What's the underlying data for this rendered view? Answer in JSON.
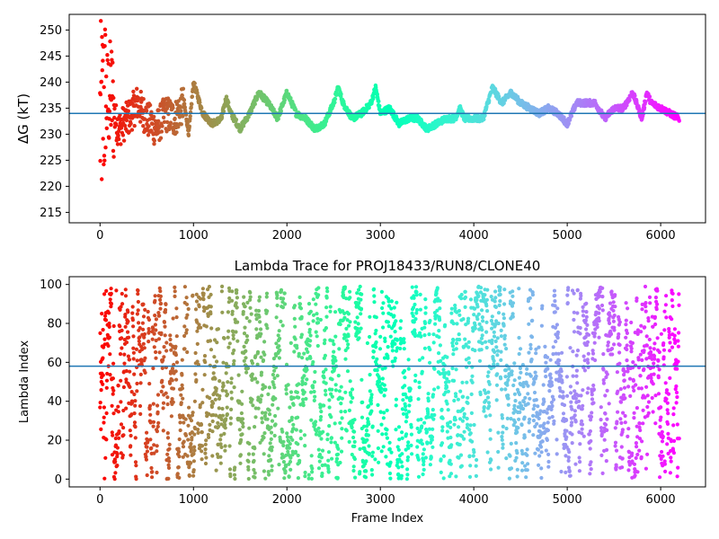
{
  "colors": {
    "series_colormap": "rainbow",
    "reference_line": "#1f77b4",
    "axes": "#000000",
    "background": "#ffffff"
  },
  "chart_data": [
    {
      "type": "scatter",
      "panel": "top",
      "title": "",
      "xlabel": "",
      "ylabel": "ΔG (kT)",
      "xlim": [
        -330,
        6480
      ],
      "ylim": [
        213,
        253
      ],
      "xticks": [
        0,
        1000,
        2000,
        3000,
        4000,
        5000,
        6000
      ],
      "yticks": [
        215,
        220,
        225,
        230,
        235,
        240,
        245,
        250
      ],
      "grid": false,
      "legend": "none",
      "color_encoding": "rainbow colormap reversed over frame index (red at frame 0, violet near frame 6200)",
      "reference_line_y": 234,
      "n_frames": 6200,
      "series": [
        {
          "x": [
            0,
            40,
            80,
            120,
            160,
            200,
            300,
            400,
            500,
            600,
            700,
            800,
            900,
            950,
            1000,
            1100,
            1200,
            1300,
            1350,
            1400,
            1500,
            1600,
            1700,
            1800,
            1900,
            2000,
            2100,
            2200,
            2300,
            2400,
            2500,
            2550,
            2600,
            2700,
            2800,
            2900,
            2950,
            3000,
            3100,
            3200,
            3300,
            3400,
            3500,
            3600,
            3700,
            3800,
            3850,
            3900,
            4000,
            4100,
            4200,
            4300,
            4400,
            4500,
            4600,
            4700,
            4800,
            4900,
            5000,
            5100,
            5200,
            5300,
            5400,
            5500,
            5600,
            5700,
            5800,
            5850,
            5900,
            6000,
            6100,
            6200
          ],
          "y": [
            232,
            236,
            236,
            238,
            233,
            231,
            233,
            236,
            233,
            231,
            234,
            233,
            236,
            230,
            240,
            234,
            232,
            233,
            237,
            234,
            231,
            234,
            238,
            236,
            233,
            238,
            234,
            233,
            231,
            232,
            236,
            239,
            236,
            233,
            234,
            236,
            239,
            234,
            235,
            232,
            233,
            233,
            231,
            232,
            233,
            233,
            235,
            233,
            233,
            233,
            239,
            236,
            238,
            236,
            235,
            234,
            235,
            234,
            232,
            236,
            236,
            236,
            233,
            235,
            235,
            238,
            233,
            238,
            236,
            235,
            234,
            233
          ]
        }
      ]
    },
    {
      "type": "scatter",
      "panel": "bottom",
      "title": "Lambda Trace for PROJ18433/RUN8/CLONE40",
      "xlabel": "Frame Index",
      "ylabel": "Lambda Index",
      "xlim": [
        -330,
        6480
      ],
      "ylim": [
        -4,
        104
      ],
      "xticks": [
        0,
        1000,
        2000,
        3000,
        4000,
        5000,
        6000
      ],
      "yticks": [
        0,
        20,
        40,
        60,
        80,
        100
      ],
      "grid": false,
      "legend": "none",
      "color_encoding": "rainbow colormap reversed over frame index (red at frame 0, violet near frame 6200)",
      "reference_line_y": 58,
      "n_frames": 6200,
      "lambda_range": [
        0,
        99
      ],
      "series": [
        {
          "x_range": [
            0,
            6200
          ],
          "y_range": [
            0,
            99
          ],
          "distribution": "lambda index spread across full range 0–99 at every frame, dense vertical streaks"
        }
      ]
    }
  ]
}
